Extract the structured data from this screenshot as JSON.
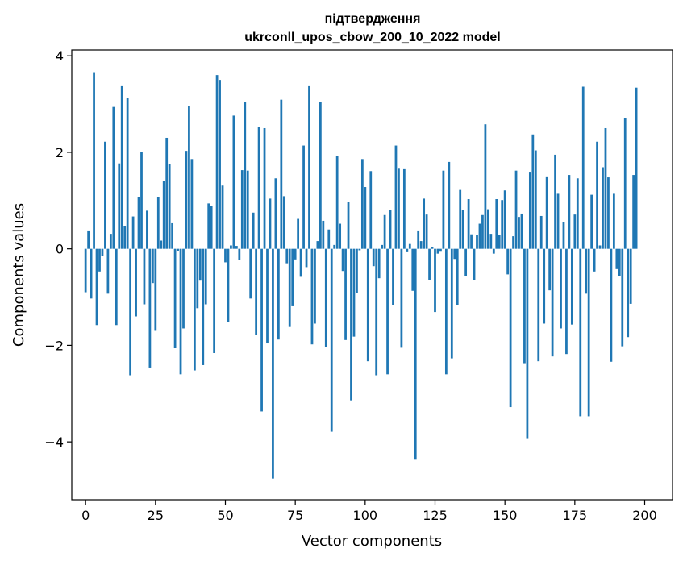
{
  "chart_data": {
    "type": "bar",
    "title_line1": "підтвердження",
    "title_line2": "ukrconll_upos_cbow_200_10_2022 model",
    "xlabel": "Vector components",
    "ylabel": "Components values",
    "xlim": [
      -4.95,
      209.95
    ],
    "ylim": [
      -5.2,
      4.12
    ],
    "xticks": [
      0,
      25,
      50,
      75,
      100,
      125,
      150,
      175,
      200
    ],
    "yticks": [
      -4,
      -2,
      0,
      2,
      4
    ],
    "ytick_labels": [
      "−4",
      "−2",
      "0",
      "2",
      "4"
    ],
    "bar_color": "#1f77b4",
    "values": [
      -0.9,
      0.38,
      -1.03,
      3.66,
      -1.58,
      -0.47,
      -0.14,
      2.22,
      -0.93,
      0.31,
      2.94,
      -1.58,
      1.77,
      3.37,
      0.47,
      3.13,
      -2.62,
      0.67,
      -1.4,
      1.07,
      2.0,
      -1.15,
      0.79,
      -2.46,
      -0.71,
      -1.7,
      1.07,
      0.17,
      1.4,
      2.3,
      1.76,
      0.53,
      -2.06,
      -0.05,
      -2.6,
      -1.65,
      2.03,
      2.96,
      1.86,
      -2.52,
      -1.23,
      -0.66,
      -2.41,
      -1.15,
      0.94,
      0.88,
      -2.16,
      3.6,
      3.5,
      1.31,
      -0.28,
      -1.52,
      0.07,
      2.76,
      0.06,
      -0.23,
      1.63,
      3.05,
      1.62,
      -1.03,
      0.75,
      -1.79,
      2.53,
      -3.37,
      2.5,
      -1.96,
      1.04,
      -4.76,
      1.46,
      -1.88,
      3.09,
      1.09,
      -0.3,
      -1.62,
      -1.19,
      -0.22,
      0.62,
      -0.58,
      2.14,
      -0.38,
      3.37,
      -1.98,
      -1.55,
      0.16,
      3.05,
      0.58,
      -2.04,
      0.4,
      -3.79,
      0.08,
      1.93,
      0.52,
      -0.46,
      -1.89,
      0.98,
      -3.14,
      -1.82,
      -0.92,
      -0.03,
      1.86,
      1.28,
      -2.33,
      1.61,
      -0.36,
      -2.62,
      -0.61,
      0.08,
      0.7,
      -2.6,
      0.8,
      -1.17,
      2.14,
      1.66,
      -2.05,
      1.65,
      -0.07,
      0.1,
      -0.87,
      -4.37,
      0.38,
      0.16,
      1.04,
      0.71,
      -0.64,
      0.03,
      -1.31,
      -0.1,
      -0.06,
      1.62,
      -2.6,
      1.8,
      -2.27,
      -0.21,
      -1.16,
      1.22,
      0.8,
      -0.57,
      1.03,
      0.3,
      -0.65,
      0.28,
      0.52,
      0.7,
      2.58,
      0.82,
      0.31,
      -0.1,
      1.03,
      0.29,
      1.01,
      1.21,
      -0.53,
      -3.28,
      0.26,
      1.62,
      0.66,
      0.73,
      -2.37,
      -3.94,
      1.58,
      2.37,
      2.04,
      -2.33,
      0.68,
      -1.55,
      1.5,
      -0.86,
      -2.23,
      1.95,
      1.14,
      -1.65,
      0.56,
      -2.18,
      1.53,
      -1.57,
      0.71,
      1.46,
      -3.47,
      3.36,
      -0.93,
      -3.47,
      1.12,
      -0.47,
      2.22,
      0.07,
      1.69,
      2.5,
      1.48,
      -2.34,
      1.14,
      -0.42,
      -0.57,
      -2.02,
      2.7,
      -1.83,
      -1.14,
      1.53,
      3.34
    ]
  }
}
